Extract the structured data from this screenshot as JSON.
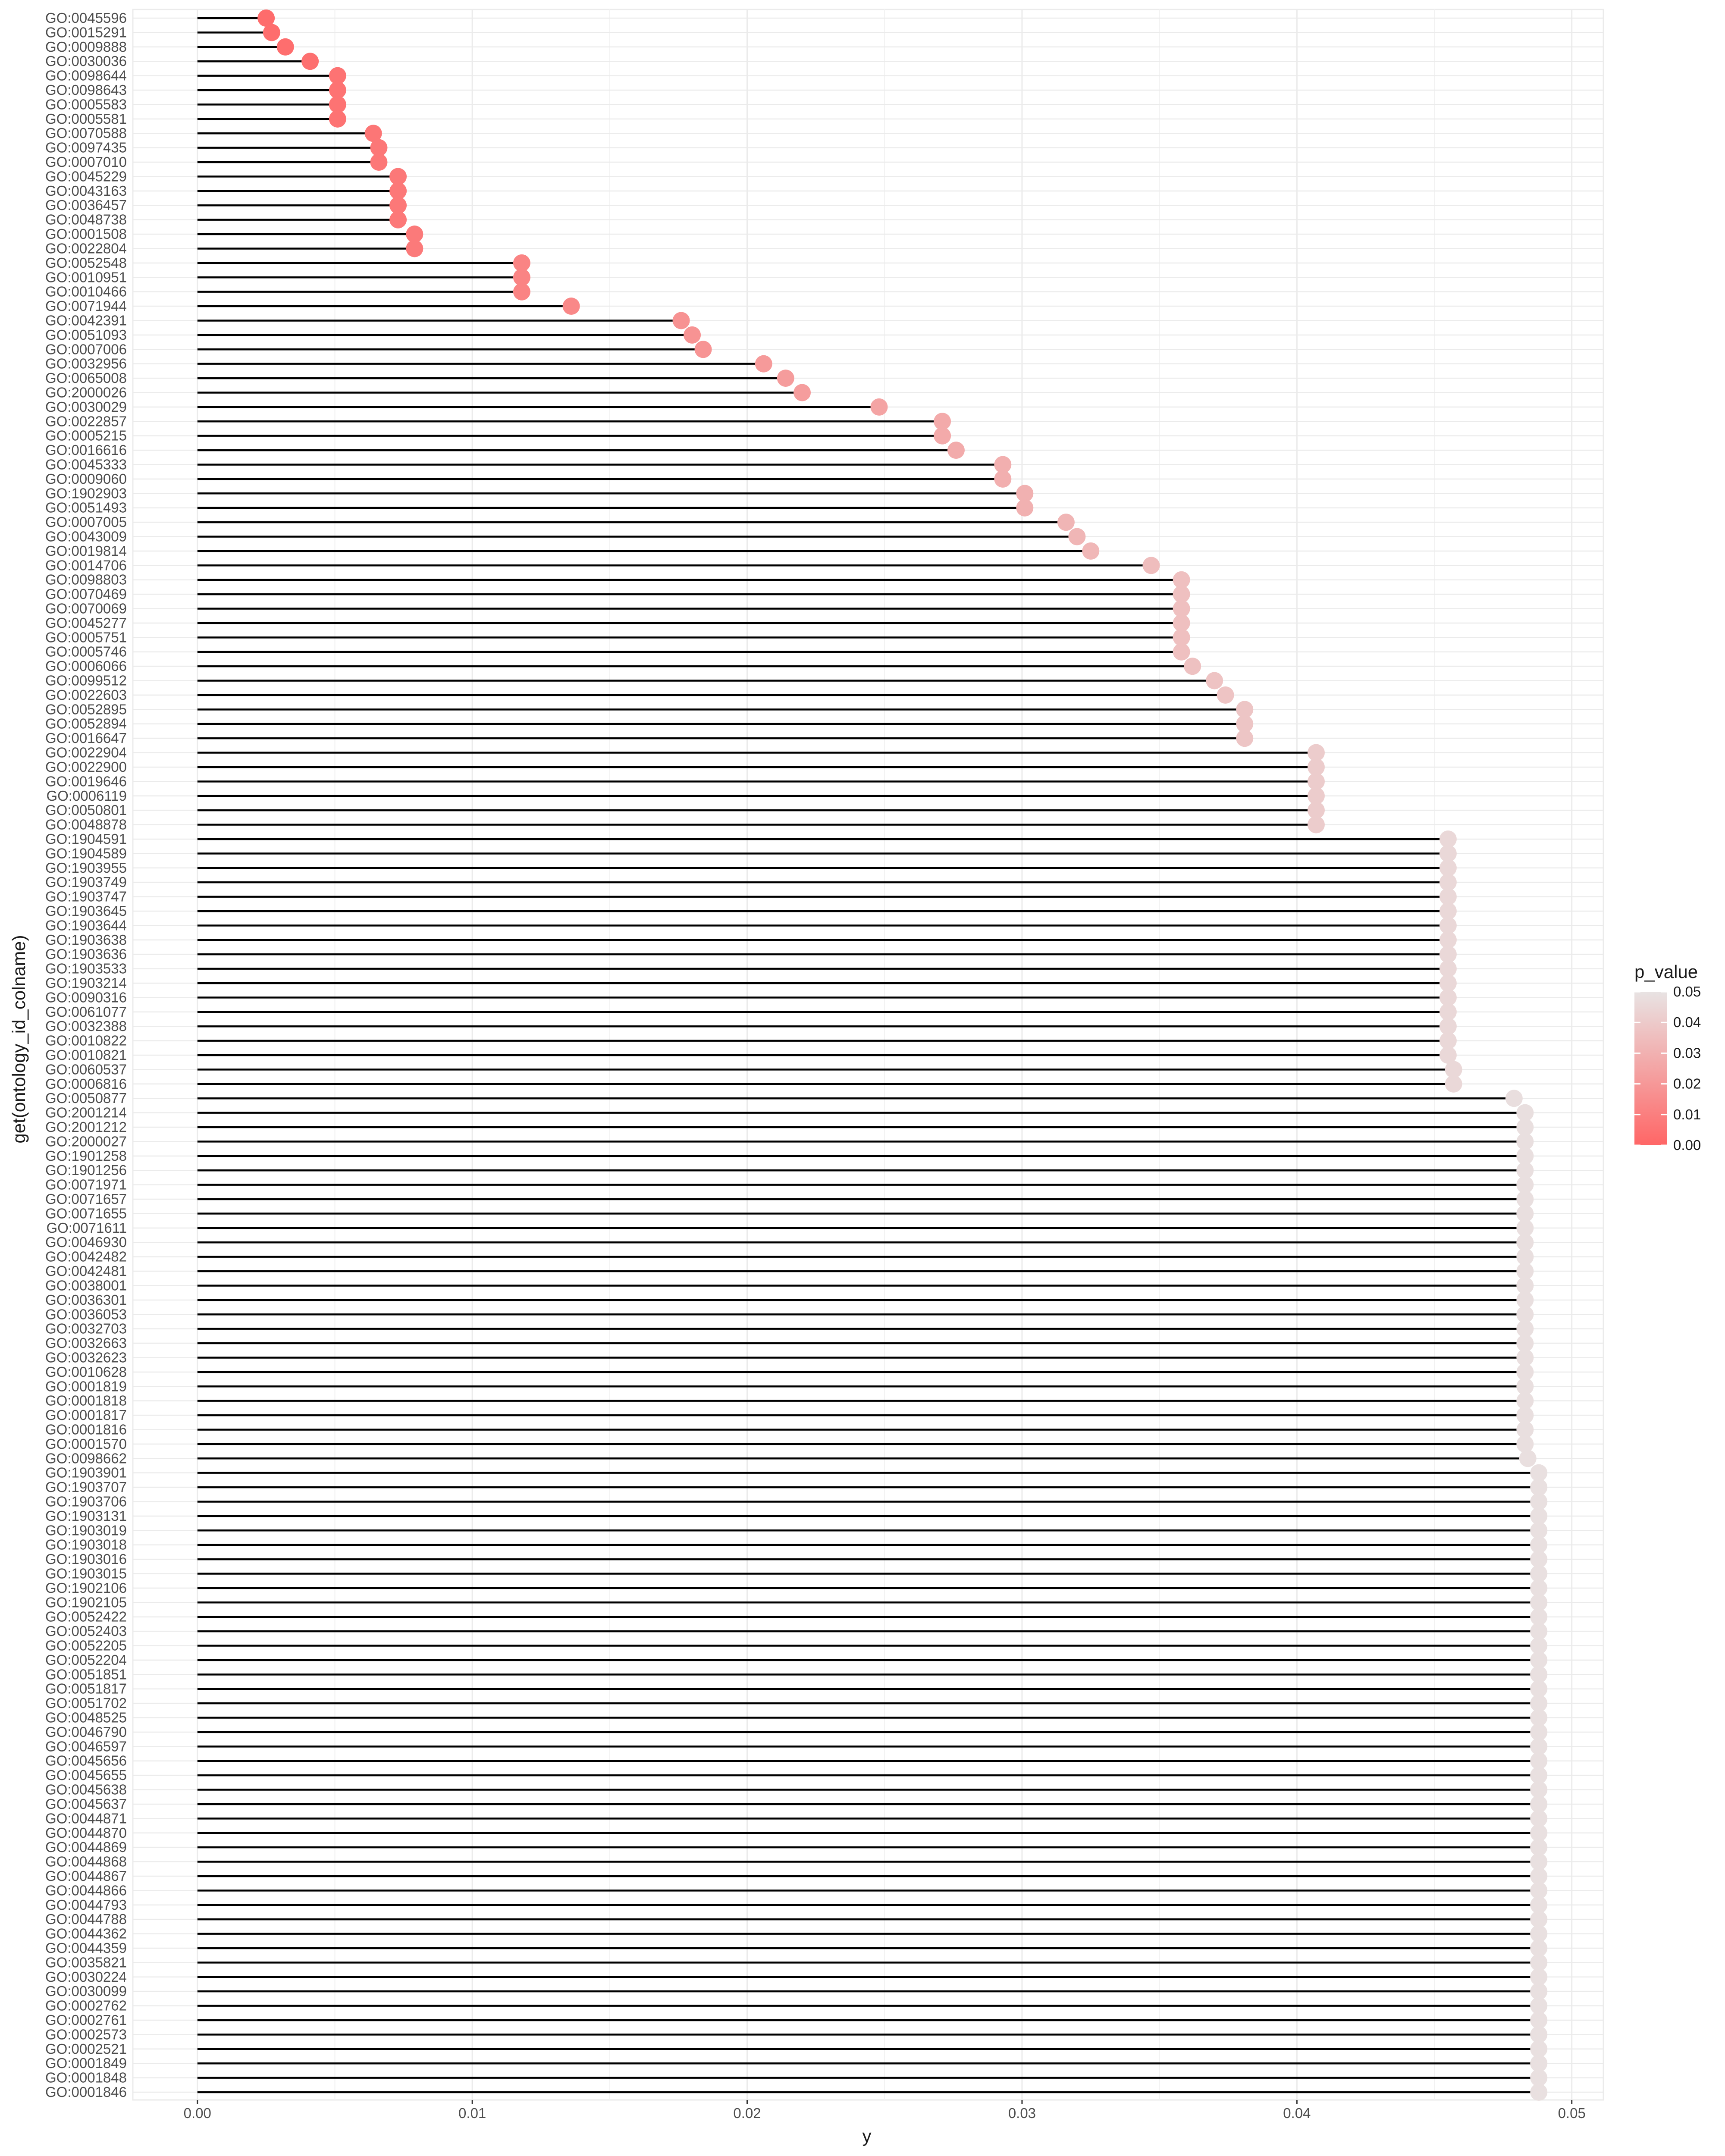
{
  "chart_data": {
    "type": "lollipop",
    "xlabel": "y",
    "ylabel": "get(ontology_id_colname)",
    "xlim": [
      -0.00235,
      0.05115
    ],
    "x_ticks": [
      0.0,
      0.01,
      0.02,
      0.03,
      0.04,
      0.05
    ],
    "x_tick_labels": [
      "0.00",
      "0.01",
      "0.02",
      "0.03",
      "0.04",
      "0.05"
    ],
    "grid": true,
    "legend": {
      "title": "p_value",
      "position": "right",
      "color_low": "#ff6666",
      "color_high": "#e8e3e3",
      "range": [
        0.0,
        0.05
      ],
      "ticks": [
        0.0,
        0.01,
        0.02,
        0.03,
        0.04,
        0.05
      ],
      "tick_labels": [
        "0.00",
        "0.01",
        "0.02",
        "0.03",
        "0.04",
        "0.05"
      ]
    },
    "stem_color": "#000000",
    "categories": [
      "GO:0045596",
      "GO:0015291",
      "GO:0009888",
      "GO:0030036",
      "GO:0098644",
      "GO:0098643",
      "GO:0005583",
      "GO:0005581",
      "GO:0070588",
      "GO:0097435",
      "GO:0007010",
      "GO:0045229",
      "GO:0043163",
      "GO:0036457",
      "GO:0048738",
      "GO:0001508",
      "GO:0022804",
      "GO:0052548",
      "GO:0010951",
      "GO:0010466",
      "GO:0071944",
      "GO:0042391",
      "GO:0051093",
      "GO:0007006",
      "GO:0032956",
      "GO:0065008",
      "GO:2000026",
      "GO:0030029",
      "GO:0022857",
      "GO:0005215",
      "GO:0016616",
      "GO:0045333",
      "GO:0009060",
      "GO:1902903",
      "GO:0051493",
      "GO:0007005",
      "GO:0043009",
      "GO:0019814",
      "GO:0014706",
      "GO:0098803",
      "GO:0070469",
      "GO:0070069",
      "GO:0045277",
      "GO:0005751",
      "GO:0005746",
      "GO:0006066",
      "GO:0099512",
      "GO:0022603",
      "GO:0052895",
      "GO:0052894",
      "GO:0016647",
      "GO:0022904",
      "GO:0022900",
      "GO:0019646",
      "GO:0006119",
      "GO:0050801",
      "GO:0048878",
      "GO:1904591",
      "GO:1904589",
      "GO:1903955",
      "GO:1903749",
      "GO:1903747",
      "GO:1903645",
      "GO:1903644",
      "GO:1903638",
      "GO:1903636",
      "GO:1903533",
      "GO:1903214",
      "GO:0090316",
      "GO:0061077",
      "GO:0032388",
      "GO:0010822",
      "GO:0010821",
      "GO:0060537",
      "GO:0006816",
      "GO:0050877",
      "GO:2001214",
      "GO:2001212",
      "GO:2000027",
      "GO:1901258",
      "GO:1901256",
      "GO:0071971",
      "GO:0071657",
      "GO:0071655",
      "GO:0071611",
      "GO:0046930",
      "GO:0042482",
      "GO:0042481",
      "GO:0038001",
      "GO:0036301",
      "GO:0036053",
      "GO:0032703",
      "GO:0032663",
      "GO:0032623",
      "GO:0010628",
      "GO:0001819",
      "GO:0001818",
      "GO:0001817",
      "GO:0001816",
      "GO:0001570",
      "GO:0098662",
      "GO:1903901",
      "GO:1903707",
      "GO:1903706",
      "GO:1903131",
      "GO:1903019",
      "GO:1903018",
      "GO:1903016",
      "GO:1903015",
      "GO:1902106",
      "GO:1902105",
      "GO:0052422",
      "GO:0052403",
      "GO:0052205",
      "GO:0052204",
      "GO:0051851",
      "GO:0051817",
      "GO:0051702",
      "GO:0048525",
      "GO:0046790",
      "GO:0046597",
      "GO:0045656",
      "GO:0045655",
      "GO:0045638",
      "GO:0045637",
      "GO:0044871",
      "GO:0044870",
      "GO:0044869",
      "GO:0044868",
      "GO:0044867",
      "GO:0044866",
      "GO:0044793",
      "GO:0044788",
      "GO:0044362",
      "GO:0044359",
      "GO:0035821",
      "GO:0030224",
      "GO:0030099",
      "GO:0002762",
      "GO:0002761",
      "GO:0002573",
      "GO:0002521",
      "GO:0001849",
      "GO:0001848",
      "GO:0001846"
    ],
    "values": [
      0.0025,
      0.0027,
      0.0032,
      0.0041,
      0.0051,
      0.0051,
      0.0051,
      0.0051,
      0.0064,
      0.0066,
      0.0066,
      0.0073,
      0.0073,
      0.0073,
      0.0073,
      0.0079,
      0.0079,
      0.0118,
      0.0118,
      0.0118,
      0.0136,
      0.0176,
      0.018,
      0.0184,
      0.0206,
      0.0214,
      0.022,
      0.0248,
      0.0271,
      0.0271,
      0.0276,
      0.0293,
      0.0293,
      0.0301,
      0.0301,
      0.0316,
      0.032,
      0.0325,
      0.0347,
      0.0358,
      0.0358,
      0.0358,
      0.0358,
      0.0358,
      0.0358,
      0.0362,
      0.037,
      0.0374,
      0.0381,
      0.0381,
      0.0381,
      0.0407,
      0.0407,
      0.0407,
      0.0407,
      0.0407,
      0.0407,
      0.0455,
      0.0455,
      0.0455,
      0.0455,
      0.0455,
      0.0455,
      0.0455,
      0.0455,
      0.0455,
      0.0455,
      0.0455,
      0.0455,
      0.0455,
      0.0455,
      0.0455,
      0.0455,
      0.0457,
      0.0457,
      0.0479,
      0.0483,
      0.0483,
      0.0483,
      0.0483,
      0.0483,
      0.0483,
      0.0483,
      0.0483,
      0.0483,
      0.0483,
      0.0483,
      0.0483,
      0.0483,
      0.0483,
      0.0483,
      0.0483,
      0.0483,
      0.0483,
      0.0483,
      0.0483,
      0.0483,
      0.0483,
      0.0483,
      0.0483,
      0.0484,
      0.0488,
      0.0488,
      0.0488,
      0.0488,
      0.0488,
      0.0488,
      0.0488,
      0.0488,
      0.0488,
      0.0488,
      0.0488,
      0.0488,
      0.0488,
      0.0488,
      0.0488,
      0.0488,
      0.0488,
      0.0488,
      0.0488,
      0.0488,
      0.0488,
      0.0488,
      0.0488,
      0.0488,
      0.0488,
      0.0488,
      0.0488,
      0.0488,
      0.0488,
      0.0488,
      0.0488,
      0.0488,
      0.0488,
      0.0488,
      0.0488,
      0.0488,
      0.0488,
      0.0488,
      0.0488,
      0.0488,
      0.0488,
      0.0488,
      0.0488,
      0.0488
    ]
  }
}
